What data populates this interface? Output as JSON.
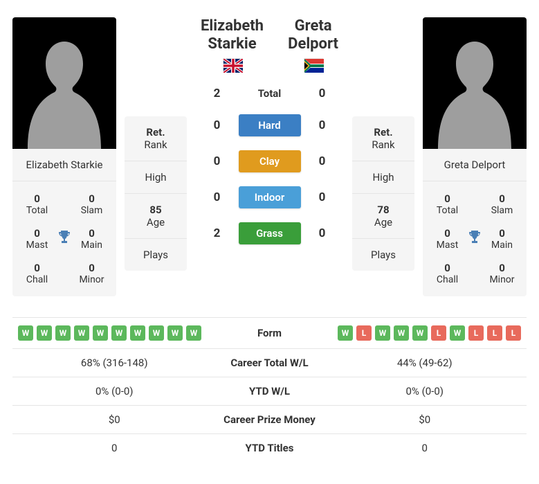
{
  "player1": {
    "name": "Elizabeth Starkie",
    "nameLine1": "Elizabeth",
    "nameLine2": "Starkie",
    "flag": "gb",
    "titles": {
      "total": {
        "value": "0",
        "label": "Total"
      },
      "slam": {
        "value": "0",
        "label": "Slam"
      },
      "mast": {
        "value": "0",
        "label": "Mast"
      },
      "main": {
        "value": "0",
        "label": "Main"
      },
      "chall": {
        "value": "0",
        "label": "Chall"
      },
      "minor": {
        "value": "0",
        "label": "Minor"
      }
    },
    "stats": {
      "rank": {
        "value": "Ret.",
        "label": "Rank"
      },
      "high": {
        "value": "",
        "label": "High"
      },
      "age": {
        "value": "85",
        "label": "Age"
      },
      "plays": {
        "value": "",
        "label": "Plays"
      }
    },
    "form": [
      "W",
      "W",
      "W",
      "W",
      "W",
      "W",
      "W",
      "W",
      "W",
      "W"
    ],
    "careerWL": "68% (316-148)",
    "ytdWL": "0% (0-0)",
    "prizeMoney": "$0",
    "ytdTitles": "0"
  },
  "player2": {
    "name": "Greta Delport",
    "nameLine1": "Greta",
    "nameLine2": "Delport",
    "flag": "za",
    "titles": {
      "total": {
        "value": "0",
        "label": "Total"
      },
      "slam": {
        "value": "0",
        "label": "Slam"
      },
      "mast": {
        "value": "0",
        "label": "Mast"
      },
      "main": {
        "value": "0",
        "label": "Main"
      },
      "chall": {
        "value": "0",
        "label": "Chall"
      },
      "minor": {
        "value": "0",
        "label": "Minor"
      }
    },
    "stats": {
      "rank": {
        "value": "Ret.",
        "label": "Rank"
      },
      "high": {
        "value": "",
        "label": "High"
      },
      "age": {
        "value": "78",
        "label": "Age"
      },
      "plays": {
        "value": "",
        "label": "Plays"
      }
    },
    "form": [
      "W",
      "L",
      "W",
      "W",
      "W",
      "L",
      "W",
      "L",
      "L",
      "L"
    ],
    "careerWL": "44% (49-62)",
    "ytdWL": "0% (0-0)",
    "prizeMoney": "$0",
    "ytdTitles": "0"
  },
  "h2h": {
    "total": {
      "label": "Total",
      "p1": "2",
      "p2": "0"
    },
    "surfaces": [
      {
        "label": "Hard",
        "p1": "0",
        "p2": "0",
        "color": "#3b7fc4"
      },
      {
        "label": "Clay",
        "p1": "0",
        "p2": "0",
        "color": "#e09b1e"
      },
      {
        "label": "Indoor",
        "p1": "0",
        "p2": "0",
        "color": "#4a9fd8"
      },
      {
        "label": "Grass",
        "p1": "2",
        "p2": "0",
        "color": "#3a9e3a"
      }
    ]
  },
  "compareLabels": {
    "form": "Form",
    "careerWL": "Career Total W/L",
    "ytdWL": "YTD W/L",
    "prizeMoney": "Career Prize Money",
    "ytdTitles": "YTD Titles"
  },
  "colors": {
    "winBadge": "#5cb85c",
    "lossBadge": "#e86a5c",
    "trophy": "#4a7fb5"
  }
}
